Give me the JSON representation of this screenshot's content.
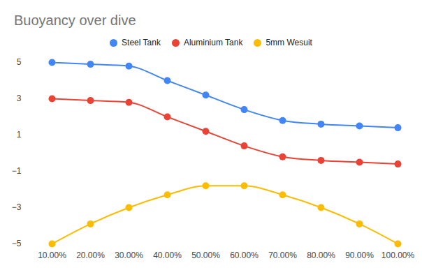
{
  "chart_data": {
    "type": "line",
    "title": "Buoyancy over dive",
    "categories": [
      "10.00%",
      "20.00%",
      "30.00%",
      "40.00%",
      "50.00%",
      "60.00%",
      "70.00%",
      "80.00%",
      "90.00%",
      "100.00%"
    ],
    "series": [
      {
        "name": "Steel Tank",
        "color": "#4285f4",
        "values": [
          5,
          4.9,
          4.8,
          4,
          3.2,
          2.4,
          1.8,
          1.6,
          1.5,
          1.4
        ]
      },
      {
        "name": "Aluminium Tank",
        "color": "#ea4335",
        "values": [
          3,
          2.9,
          2.8,
          2,
          1.2,
          0.4,
          -0.2,
          -0.4,
          -0.5,
          -0.6
        ]
      },
      {
        "name": "5mm Wesuit",
        "color": "#fbbc04",
        "values": [
          -5,
          -3.9,
          -3,
          -2.3,
          -1.8,
          -1.8,
          -2.3,
          -3,
          -3.9,
          -5
        ]
      }
    ],
    "ylim": [
      -5,
      5
    ],
    "yticks": [
      -5,
      -3,
      -1,
      1,
      3,
      5
    ],
    "grid": false,
    "legend": "top",
    "marker": "circle",
    "line_style": "smooth"
  }
}
